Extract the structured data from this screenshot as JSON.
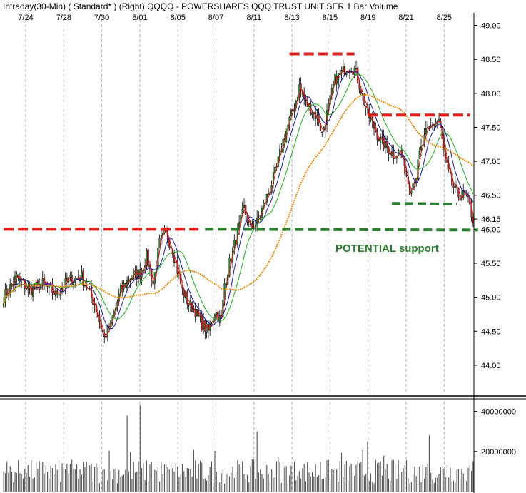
{
  "chart_data": {
    "header": "Intraday(30-Min) ( Standard* )   (Right)  QQQQ - POWERSHARES QQQ TRUST UNIT SER 1  Bar  Volume",
    "type": "candlestick",
    "x_labels": [
      "7/24",
      "7/28",
      "7/30",
      "8/01",
      "8/05",
      "8/07",
      "8/11",
      "8/13",
      "8/15",
      "8/19",
      "8/21",
      "8/25"
    ],
    "price_ticks": [
      "44.00",
      "44.50",
      "45.00",
      "45.50",
      "46.00",
      "46.15",
      "46.50",
      "47.00",
      "47.50",
      "48.00",
      "48.50",
      "49.00"
    ],
    "price_range": [
      43.6,
      49.1
    ],
    "volume_ticks": [
      "20000000",
      "40000000"
    ],
    "volume_range": [
      0,
      42000000
    ],
    "annotation": "POTENTIAL support",
    "price_path": [
      [
        0,
        45.0
      ],
      [
        8,
        45.3
      ],
      [
        16,
        45.1
      ],
      [
        24,
        45.2
      ],
      [
        32,
        45.05
      ],
      [
        40,
        45.25
      ],
      [
        48,
        45.3
      ],
      [
        56,
        44.9
      ],
      [
        62,
        44.4
      ],
      [
        66,
        44.6
      ],
      [
        72,
        45.1
      ],
      [
        78,
        45.3
      ],
      [
        84,
        45.35
      ],
      [
        88,
        45.6
      ],
      [
        92,
        45.2
      ],
      [
        96,
        45.8
      ],
      [
        100,
        45.95
      ],
      [
        104,
        45.7
      ],
      [
        110,
        45.1
      ],
      [
        114,
        44.9
      ],
      [
        118,
        44.8
      ],
      [
        122,
        44.6
      ],
      [
        126,
        44.5
      ],
      [
        130,
        44.8
      ],
      [
        134,
        44.65
      ],
      [
        136,
        45.2
      ],
      [
        140,
        45.6
      ],
      [
        144,
        45.95
      ],
      [
        148,
        46.3
      ],
      [
        152,
        46.0
      ],
      [
        156,
        46.1
      ],
      [
        160,
        46.35
      ],
      [
        164,
        46.6
      ],
      [
        168,
        46.9
      ],
      [
        172,
        47.3
      ],
      [
        176,
        47.6
      ],
      [
        180,
        47.9
      ],
      [
        182,
        48.1
      ],
      [
        186,
        47.85
      ],
      [
        190,
        47.75
      ],
      [
        194,
        47.6
      ],
      [
        196,
        47.4
      ],
      [
        200,
        47.8
      ],
      [
        204,
        48.2
      ],
      [
        208,
        48.3
      ],
      [
        212,
        48.4
      ],
      [
        216,
        48.35
      ],
      [
        220,
        48.05
      ],
      [
        224,
        47.7
      ],
      [
        228,
        47.5
      ],
      [
        232,
        47.3
      ],
      [
        236,
        47.2
      ],
      [
        240,
        47.1
      ],
      [
        244,
        47.15
      ],
      [
        248,
        46.8
      ],
      [
        250,
        46.6
      ],
      [
        254,
        46.8
      ],
      [
        256,
        47.1
      ],
      [
        260,
        47.4
      ],
      [
        264,
        47.55
      ],
      [
        268,
        47.6
      ],
      [
        272,
        47.0
      ],
      [
        276,
        46.65
      ],
      [
        280,
        46.5
      ],
      [
        284,
        46.5
      ],
      [
        286,
        46.4
      ],
      [
        289,
        46.15
      ]
    ],
    "vol_spikes": [
      [
        76,
        38000000
      ],
      [
        84,
        43000000
      ],
      [
        156,
        30000000
      ],
      [
        224,
        25000000
      ],
      [
        262,
        28000000
      ]
    ],
    "resistance_lines": [
      {
        "x0": 0,
        "x1": 120,
        "y": 46.0
      },
      {
        "x0": 176,
        "x1": 216,
        "y": 48.58
      },
      {
        "x0": 224,
        "x1": 287,
        "y": 47.68
      }
    ],
    "support_lines": [
      {
        "x0": 239,
        "x1": 279,
        "y": 46.38
      },
      {
        "x0": 124,
        "x1": 292,
        "y": 46.0
      }
    ],
    "colors": {
      "up": "#2e8b2e",
      "down": "#cc2222",
      "ma_fast": "#cc2222",
      "ma_med": "#1a1aa0",
      "ma_slow": "#22aa22",
      "ma_long": "#e8901a",
      "resist": "#e02020",
      "support": "#2e7d32",
      "grid": "#b0b0b0",
      "volume": "#555555"
    }
  }
}
